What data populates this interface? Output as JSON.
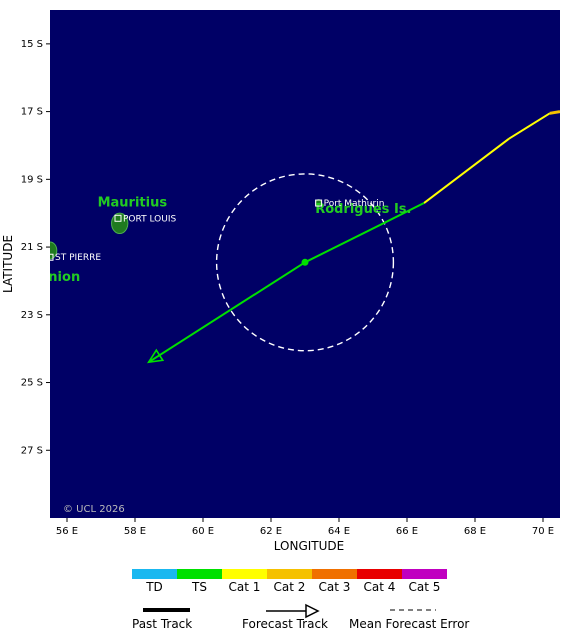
{
  "map": {
    "xlabel": "LONGITUDE",
    "ylabel": "LATITUDE",
    "lon_range": [
      55.5,
      70.5
    ],
    "lat_range": [
      -29.0,
      -14.0
    ],
    "lon_ticks": [
      {
        "value": 56,
        "label": "56 E"
      },
      {
        "value": 58,
        "label": "58 E"
      },
      {
        "value": 60,
        "label": "60 E"
      },
      {
        "value": 62,
        "label": "62 E"
      },
      {
        "value": 64,
        "label": "64 E"
      },
      {
        "value": 66,
        "label": "66 E"
      },
      {
        "value": 68,
        "label": "68 E"
      },
      {
        "value": 70,
        "label": "70 E"
      }
    ],
    "lat_ticks": [
      {
        "value": -15,
        "label": "15 S"
      },
      {
        "value": -17,
        "label": "17 S"
      },
      {
        "value": -19,
        "label": "19 S"
      },
      {
        "value": -21,
        "label": "21 S"
      },
      {
        "value": -23,
        "label": "23 S"
      },
      {
        "value": -25,
        "label": "25 S"
      },
      {
        "value": -27,
        "label": "27 S"
      }
    ],
    "copyright": "© UCL 2026",
    "colors": {
      "ocean": "#000066",
      "land": "#1f7a1f",
      "label_green": "#22cc22"
    },
    "islands": [
      {
        "name": "Mauritius",
        "lon": 57.55,
        "lat": -20.3,
        "r": 0.3
      },
      {
        "name": "Rodrigues Is.",
        "lon": 63.4,
        "lat": -19.7,
        "r": 0.1
      },
      {
        "name": "Réunion",
        "lon": 55.5,
        "lat": -21.1,
        "r": 0.25
      }
    ],
    "places": [
      {
        "name": "Mauritius",
        "lon": 56.9,
        "lat": -19.8
      },
      {
        "name": "Rodrigues Is.",
        "lon": 63.3,
        "lat": -20.0
      },
      {
        "name": "nion",
        "lon": 55.45,
        "lat": -22.0
      }
    ],
    "cities": [
      {
        "name": "PORT LOUIS",
        "lon": 57.5,
        "lat": -20.15
      },
      {
        "name": "Port Mathurin",
        "lon": 63.4,
        "lat": -19.7
      },
      {
        "name": "ST PIERRE",
        "lon": 55.5,
        "lat": -21.3
      }
    ]
  },
  "track": {
    "past": [
      {
        "lon": 70.5,
        "lat": -17.0,
        "cat": "Cat 2"
      },
      {
        "lon": 70.2,
        "lat": -17.05,
        "cat": "Cat 2"
      }
    ],
    "forecast": [
      {
        "lon": 70.2,
        "lat": -17.05,
        "cat": "Cat 1"
      },
      {
        "lon": 69.0,
        "lat": -17.8,
        "cat": "Cat 1"
      },
      {
        "lon": 66.5,
        "lat": -19.7,
        "cat": "Cat 1"
      },
      {
        "lon": 63.0,
        "lat": -21.45,
        "cat": "TS"
      },
      {
        "lon": 58.4,
        "lat": -24.4,
        "cat": "TS"
      }
    ],
    "current": {
      "lon": 63.0,
      "lat": -21.45
    },
    "error_circle": {
      "lon": 63.0,
      "lat": -21.45,
      "radius_deg": 2.6
    }
  },
  "legend": {
    "categories": [
      {
        "label": "TD",
        "color": "#1ab8f0"
      },
      {
        "label": "TS",
        "color": "#00e000"
      },
      {
        "label": "Cat 1",
        "color": "#ffff00"
      },
      {
        "label": "Cat 2",
        "color": "#f5c100"
      },
      {
        "label": "Cat 3",
        "color": "#f07000"
      },
      {
        "label": "Cat 4",
        "color": "#e80000"
      },
      {
        "label": "Cat 5",
        "color": "#c000c0"
      }
    ],
    "past_track": "Past Track",
    "forecast_track": "Forecast Track",
    "mean_error": "Mean Forecast Error"
  }
}
